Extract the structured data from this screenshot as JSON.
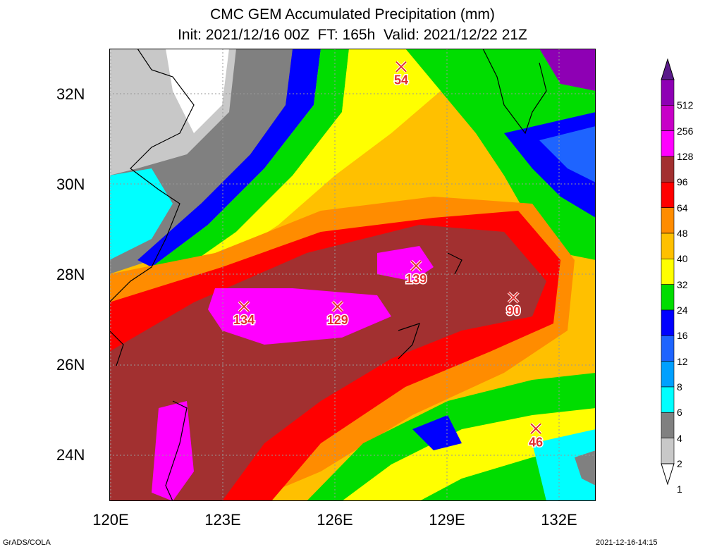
{
  "title_line1": "CMC GEM Accumulated Precipitation (mm)",
  "title_line2": "Init: 2021/12/16 00Z  FT: 165h  Valid: 2021/12/22 21Z",
  "lat_labels": [
    "32N",
    "30N",
    "28N",
    "26N",
    "24N"
  ],
  "lon_labels": [
    "120E",
    "123E",
    "126E",
    "129E",
    "132E"
  ],
  "footer_left": "GrADS/COLA",
  "footer_right": "2021-12-16-14:15",
  "colorbar": {
    "labels": [
      "512",
      "256",
      "128",
      "96",
      "64",
      "48",
      "40",
      "32",
      "24",
      "16",
      "12",
      "8",
      "6",
      "4",
      "2",
      "1"
    ],
    "colors": [
      "#5a1a8a",
      "#8e00b4",
      "#c700c7",
      "#ff00ff",
      "#a23030",
      "#ff0000",
      "#ff8c00",
      "#ffc000",
      "#ffff00",
      "#00dd00",
      "#0000ff",
      "#1e64ff",
      "#00a0ff",
      "#00ffff",
      "#808080",
      "#c8c8c8",
      "#ffffff"
    ]
  },
  "maxima": [
    {
      "value": "54",
      "lon": 127.8,
      "lat": 32.6
    },
    {
      "value": "134",
      "lon": 123.6,
      "lat": 27.3
    },
    {
      "value": "129",
      "lon": 126.1,
      "lat": 27.3
    },
    {
      "value": "139",
      "lon": 128.2,
      "lat": 28.2
    },
    {
      "value": "90",
      "lon": 130.8,
      "lat": 27.5
    },
    {
      "value": "46",
      "lon": 131.4,
      "lat": 24.6
    }
  ],
  "map_extent": {
    "lon_min": 120,
    "lon_max": 133,
    "lat_min": 23,
    "lat_max": 33
  }
}
